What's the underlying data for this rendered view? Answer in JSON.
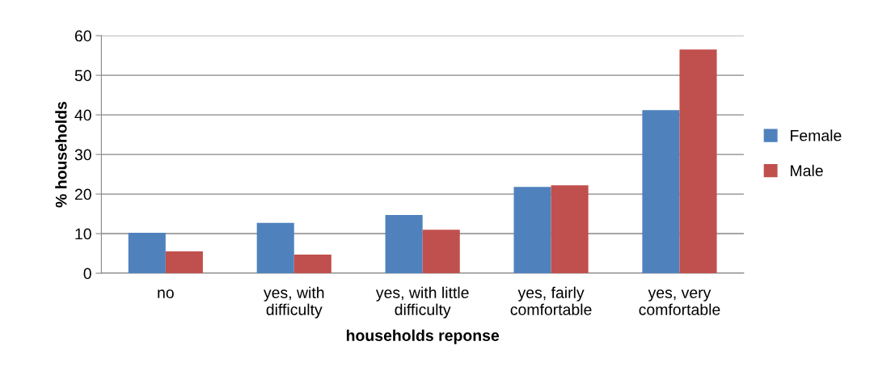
{
  "chart_data": {
    "type": "bar",
    "xlabel": "households reponse",
    "ylabel": "% households",
    "categories": [
      "no",
      "yes, with\ndifficulty",
      "yes, with little\ndifficulty",
      "yes, fairly\ncomfortable",
      "yes, very\ncomfortable"
    ],
    "series": [
      {
        "name": "Female",
        "color": "#4f81bd",
        "values": [
          10.2,
          12.7,
          14.7,
          21.8,
          41.2
        ]
      },
      {
        "name": "Male",
        "color": "#c0504d",
        "values": [
          5.5,
          4.7,
          11.0,
          22.2,
          56.5
        ]
      }
    ],
    "ylim": [
      0,
      60
    ],
    "yticks": [
      0,
      10,
      20,
      30,
      40,
      50,
      60
    ],
    "grid": "y",
    "legend": "right"
  }
}
